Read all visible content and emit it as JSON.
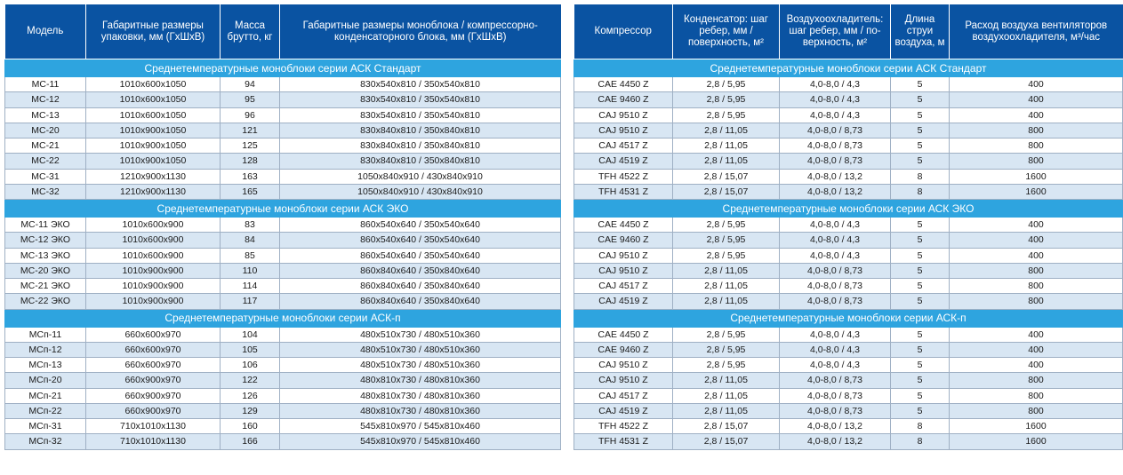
{
  "left_table": {
    "headers": [
      "Модель",
      "Габаритные размеры упаковки, мм (ГхШхВ)",
      "Масса брутто, кг",
      "Габаритные размеры моноблока / компрессорно-конденсаторного блока, мм (ГхШхВ)"
    ],
    "sections": [
      {
        "title": "Среднетемпературные моноблоки серии АСК Стандарт",
        "rows": [
          [
            "MC-11",
            "1010x600x1050",
            "94",
            "830x540x810 / 350x540x810"
          ],
          [
            "MC-12",
            "1010x600x1050",
            "95",
            "830x540x810 / 350x540x810"
          ],
          [
            "MC-13",
            "1010x600x1050",
            "96",
            "830x540x810 / 350x540x810"
          ],
          [
            "MC-20",
            "1010x900x1050",
            "121",
            "830x840x810 / 350x840x810"
          ],
          [
            "MC-21",
            "1010x900x1050",
            "125",
            "830x840x810 / 350x840x810"
          ],
          [
            "MC-22",
            "1010x900x1050",
            "128",
            "830x840x810 / 350x840x810"
          ],
          [
            "MC-31",
            "1210x900x1130",
            "163",
            "1050x840x910 / 430x840x910"
          ],
          [
            "MC-32",
            "1210x900x1130",
            "165",
            "1050x840x910 / 430x840x910"
          ]
        ]
      },
      {
        "title": "Среднетемпературные моноблоки серии АСК ЭКО",
        "rows": [
          [
            "MC-11 ЭКО",
            "1010x600x900",
            "83",
            "860x540x640 / 350x540x640"
          ],
          [
            "MC-12 ЭКО",
            "1010x600x900",
            "84",
            "860x540x640 / 350x540x640"
          ],
          [
            "MC-13 ЭКО",
            "1010x600x900",
            "85",
            "860x540x640 / 350x540x640"
          ],
          [
            "MC-20 ЭКО",
            "1010x900x900",
            "110",
            "860x840x640 / 350x840x640"
          ],
          [
            "MC-21 ЭКО",
            "1010x900x900",
            "114",
            "860x840x640 / 350x840x640"
          ],
          [
            "MC-22 ЭКО",
            "1010x900x900",
            "117",
            "860x840x640 / 350x840x640"
          ]
        ]
      },
      {
        "title": "Среднетемпературные моноблоки серии АСК-п",
        "rows": [
          [
            "MCп-11",
            "660x600x970",
            "104",
            "480x510x730 / 480x510x360"
          ],
          [
            "MCп-12",
            "660x600x970",
            "105",
            "480x510x730 / 480x510x360"
          ],
          [
            "MCп-13",
            "660x600x970",
            "106",
            "480x510x730 / 480x510x360"
          ],
          [
            "MCп-20",
            "660x900x970",
            "122",
            "480x810x730 / 480x810x360"
          ],
          [
            "MCп-21",
            "660x900x970",
            "126",
            "480x810x730 / 480x810x360"
          ],
          [
            "MCп-22",
            "660x900x970",
            "129",
            "480x810x730 / 480x810x360"
          ],
          [
            "MCп-31",
            "710x1010x1130",
            "160",
            "545x810x970 / 545x810x460"
          ],
          [
            "MCп-32",
            "710x1010x1130",
            "166",
            "545x810x970 / 545x810x460"
          ]
        ]
      }
    ]
  },
  "right_table": {
    "headers": [
      "Компрессор",
      "Конденсатор: шаг ребер, мм / поверхность, м²",
      "Воздухоохладитель: шаг ребер, мм / по-верхность, м²",
      "Длина струи воздуха, м",
      "Расход воздуха вентиляторов воздухоохладителя, м³/час"
    ],
    "sections": [
      {
        "title": "Среднетемпературные моноблоки серии АСК Стандарт",
        "rows": [
          [
            "CAE 4450 Z",
            "2,8 / 5,95",
            "4,0-8,0 / 4,3",
            "5",
            "400"
          ],
          [
            "CAE 9460 Z",
            "2,8 / 5,95",
            "4,0-8,0 / 4,3",
            "5",
            "400"
          ],
          [
            "CAJ 9510 Z",
            "2,8 / 5,95",
            "4,0-8,0 / 4,3",
            "5",
            "400"
          ],
          [
            "CAJ 9510 Z",
            "2,8 / 11,05",
            "4,0-8,0 / 8,73",
            "5",
            "800"
          ],
          [
            "CAJ 4517 Z",
            "2,8 / 11,05",
            "4,0-8,0 / 8,73",
            "5",
            "800"
          ],
          [
            "CAJ 4519 Z",
            "2,8 / 11,05",
            "4,0-8,0 / 8,73",
            "5",
            "800"
          ],
          [
            "TFH 4522 Z",
            "2,8 / 15,07",
            "4,0-8,0 / 13,2",
            "8",
            "1600"
          ],
          [
            "TFH 4531 Z",
            "2,8 / 15,07",
            "4,0-8,0 / 13,2",
            "8",
            "1600"
          ]
        ]
      },
      {
        "title": "Среднетемпературные моноблоки серии АСК ЭКО",
        "rows": [
          [
            "CAE 4450 Z",
            "2,8 / 5,95",
            "4,0-8,0 / 4,3",
            "5",
            "400"
          ],
          [
            "CAE 9460 Z",
            "2,8 / 5,95",
            "4,0-8,0 / 4,3",
            "5",
            "400"
          ],
          [
            "CAJ 9510 Z",
            "2,8 / 5,95",
            "4,0-8,0 / 4,3",
            "5",
            "400"
          ],
          [
            "CAJ 9510 Z",
            "2,8 / 11,05",
            "4,0-8,0 / 8,73",
            "5",
            "800"
          ],
          [
            "CAJ 4517 Z",
            "2,8 / 11,05",
            "4,0-8,0 / 8,73",
            "5",
            "800"
          ],
          [
            "CAJ 4519 Z",
            "2,8 / 11,05",
            "4,0-8,0 / 8,73",
            "5",
            "800"
          ]
        ]
      },
      {
        "title": "Среднетемпературные моноблоки серии АСК-п",
        "rows": [
          [
            "CAE 4450 Z",
            "2,8 / 5,95",
            "4,0-8,0 / 4,3",
            "5",
            "400"
          ],
          [
            "CAE 9460 Z",
            "2,8 / 5,95",
            "4,0-8,0 / 4,3",
            "5",
            "400"
          ],
          [
            "CAJ 9510 Z",
            "2,8 / 5,95",
            "4,0-8,0 / 4,3",
            "5",
            "400"
          ],
          [
            "CAJ 9510 Z",
            "2,8 / 11,05",
            "4,0-8,0 / 8,73",
            "5",
            "800"
          ],
          [
            "CAJ 4517 Z",
            "2,8 / 11,05",
            "4,0-8,0 / 8,73",
            "5",
            "800"
          ],
          [
            "CAJ 4519 Z",
            "2,8 / 11,05",
            "4,0-8,0 / 8,73",
            "5",
            "800"
          ],
          [
            "TFH 4522 Z",
            "2,8 / 15,07",
            "4,0-8,0 / 13,2",
            "8",
            "1600"
          ],
          [
            "TFH 4531 Z",
            "2,8 / 15,07",
            "4,0-8,0 / 13,2",
            "8",
            "1600"
          ]
        ]
      }
    ]
  },
  "colors": {
    "header_bg": "#0a53a2",
    "section_bg": "#2ea4df",
    "alt_row_bg": "#d8e6f3"
  }
}
